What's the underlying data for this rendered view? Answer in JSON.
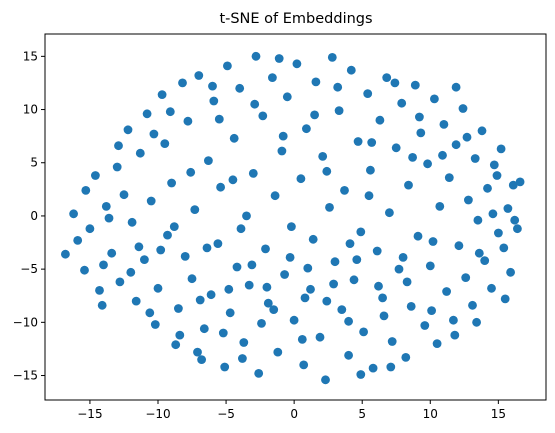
{
  "chart_data": {
    "type": "scatter",
    "title": "t-SNE of Embeddings",
    "xlabel": "",
    "ylabel": "",
    "xlim": [
      -18.3,
      18.5
    ],
    "ylim": [
      -17.3,
      17.1
    ],
    "xticks": [
      -15,
      -10,
      -5,
      0,
      5,
      10,
      15
    ],
    "yticks": [
      -15,
      -10,
      -5,
      0,
      5,
      10,
      15
    ],
    "grid": false,
    "color": "#1f77b4",
    "series": [
      {
        "points": [
          [
            -16.8,
            -3.6
          ],
          [
            -16.2,
            0.2
          ],
          [
            -15.9,
            -2.3
          ],
          [
            -15.4,
            -5.1
          ],
          [
            -15.0,
            -1.2
          ],
          [
            -14.6,
            3.8
          ],
          [
            -14.3,
            -7.0
          ],
          [
            -14.1,
            -8.4
          ],
          [
            -13.8,
            0.9
          ],
          [
            -13.4,
            -3.5
          ],
          [
            -13.0,
            4.6
          ],
          [
            -12.8,
            -6.2
          ],
          [
            -12.5,
            2.0
          ],
          [
            -12.2,
            8.1
          ],
          [
            -11.9,
            -0.6
          ],
          [
            -11.6,
            -8.0
          ],
          [
            -11.3,
            5.9
          ],
          [
            -11.0,
            -4.1
          ],
          [
            -10.8,
            9.6
          ],
          [
            -10.5,
            1.4
          ],
          [
            -10.2,
            -10.2
          ],
          [
            -10.0,
            -6.8
          ],
          [
            -9.7,
            11.4
          ],
          [
            -9.5,
            6.8
          ],
          [
            -9.3,
            -1.8
          ],
          [
            -9.0,
            3.1
          ],
          [
            -8.7,
            -12.1
          ],
          [
            -8.5,
            -8.7
          ],
          [
            -8.2,
            12.5
          ],
          [
            -8.0,
            -3.8
          ],
          [
            -7.8,
            8.9
          ],
          [
            -7.5,
            -5.9
          ],
          [
            -7.3,
            0.6
          ],
          [
            -7.0,
            13.2
          ],
          [
            -6.8,
            -13.5
          ],
          [
            -6.6,
            -10.6
          ],
          [
            -6.3,
            5.2
          ],
          [
            -6.1,
            -7.4
          ],
          [
            -5.9,
            10.8
          ],
          [
            -5.6,
            -2.6
          ],
          [
            -5.4,
            2.7
          ],
          [
            -5.1,
            -14.2
          ],
          [
            -4.9,
            14.1
          ],
          [
            -4.7,
            -9.1
          ],
          [
            -4.4,
            7.3
          ],
          [
            -4.2,
            -4.8
          ],
          [
            -4.0,
            12.0
          ],
          [
            -3.7,
            -11.9
          ],
          [
            -3.5,
            0.0
          ],
          [
            -3.3,
            -6.5
          ],
          [
            -3.0,
            4.0
          ],
          [
            -2.8,
            15.0
          ],
          [
            -2.6,
            -14.8
          ],
          [
            -2.3,
            9.4
          ],
          [
            -2.1,
            -3.1
          ],
          [
            -1.9,
            -8.2
          ],
          [
            -1.6,
            13.0
          ],
          [
            -1.4,
            1.9
          ],
          [
            -1.2,
            -12.8
          ],
          [
            -0.9,
            6.1
          ],
          [
            -0.7,
            -5.5
          ],
          [
            -0.5,
            11.2
          ],
          [
            -0.2,
            -1.0
          ],
          [
            0.0,
            -9.8
          ],
          [
            0.2,
            14.3
          ],
          [
            0.5,
            3.5
          ],
          [
            0.7,
            -14.0
          ],
          [
            0.9,
            8.2
          ],
          [
            1.2,
            -6.9
          ],
          [
            1.4,
            -2.2
          ],
          [
            1.6,
            12.6
          ],
          [
            1.9,
            -11.4
          ],
          [
            2.1,
            5.6
          ],
          [
            2.3,
            -15.4
          ],
          [
            2.6,
            0.8
          ],
          [
            2.8,
            14.9
          ],
          [
            3.0,
            -4.3
          ],
          [
            3.3,
            9.9
          ],
          [
            3.5,
            -8.8
          ],
          [
            3.7,
            2.4
          ],
          [
            4.0,
            -13.1
          ],
          [
            4.2,
            13.7
          ],
          [
            4.4,
            -6.0
          ],
          [
            4.7,
            7.0
          ],
          [
            4.9,
            -1.5
          ],
          [
            5.1,
            -10.9
          ],
          [
            5.4,
            11.5
          ],
          [
            5.6,
            4.3
          ],
          [
            5.8,
            -14.3
          ],
          [
            6.1,
            -3.3
          ],
          [
            6.3,
            9.0
          ],
          [
            6.5,
            -7.7
          ],
          [
            6.8,
            13.0
          ],
          [
            7.0,
            0.3
          ],
          [
            7.2,
            -11.8
          ],
          [
            7.5,
            6.4
          ],
          [
            7.7,
            -5.0
          ],
          [
            7.9,
            10.6
          ],
          [
            8.2,
            -13.3
          ],
          [
            8.4,
            2.9
          ],
          [
            8.6,
            -8.5
          ],
          [
            8.9,
            12.3
          ],
          [
            9.1,
            -1.9
          ],
          [
            9.3,
            7.8
          ],
          [
            9.6,
            -10.3
          ],
          [
            9.8,
            4.9
          ],
          [
            10.0,
            -4.7
          ],
          [
            10.3,
            11.0
          ],
          [
            10.5,
            -12.0
          ],
          [
            10.7,
            0.9
          ],
          [
            11.0,
            8.6
          ],
          [
            11.2,
            -7.1
          ],
          [
            11.4,
            3.6
          ],
          [
            11.7,
            -9.8
          ],
          [
            11.9,
            6.7
          ],
          [
            12.1,
            -2.8
          ],
          [
            12.4,
            10.1
          ],
          [
            12.6,
            -5.8
          ],
          [
            12.8,
            1.5
          ],
          [
            13.1,
            -8.4
          ],
          [
            13.3,
            5.4
          ],
          [
            13.5,
            -0.4
          ],
          [
            13.8,
            8.0
          ],
          [
            14.0,
            -4.2
          ],
          [
            14.2,
            2.6
          ],
          [
            14.5,
            -6.8
          ],
          [
            14.7,
            4.8
          ],
          [
            15.0,
            -1.6
          ],
          [
            15.2,
            6.3
          ],
          [
            15.4,
            -3.0
          ],
          [
            15.7,
            0.7
          ],
          [
            15.9,
            -5.3
          ],
          [
            16.1,
            2.9
          ],
          [
            16.4,
            -1.2
          ],
          [
            16.6,
            3.2
          ],
          [
            -15.3,
            2.4
          ],
          [
            -14.0,
            -4.6
          ],
          [
            -12.9,
            6.6
          ],
          [
            -11.4,
            -2.9
          ],
          [
            -10.6,
            -9.1
          ],
          [
            -9.1,
            9.8
          ],
          [
            -8.4,
            -11.2
          ],
          [
            -7.6,
            4.1
          ],
          [
            -6.9,
            -7.9
          ],
          [
            -6.0,
            12.2
          ],
          [
            -5.2,
            -11.0
          ],
          [
            -4.5,
            3.4
          ],
          [
            -3.8,
            -13.4
          ],
          [
            -2.9,
            10.5
          ],
          [
            -2.0,
            -6.7
          ],
          [
            -1.1,
            14.8
          ],
          [
            -0.3,
            -3.9
          ],
          [
            0.6,
            -11.6
          ],
          [
            1.5,
            9.5
          ],
          [
            2.4,
            -8.0
          ],
          [
            3.2,
            12.1
          ],
          [
            4.1,
            -2.6
          ],
          [
            4.9,
            -14.9
          ],
          [
            5.7,
            6.9
          ],
          [
            6.6,
            -9.4
          ],
          [
            7.4,
            12.5
          ],
          [
            8.3,
            -6.2
          ],
          [
            9.2,
            9.3
          ],
          [
            10.1,
            -8.9
          ],
          [
            10.9,
            5.7
          ],
          [
            11.8,
            -11.2
          ],
          [
            12.7,
            7.4
          ],
          [
            13.6,
            -3.5
          ],
          [
            14.6,
            0.2
          ],
          [
            15.5,
            -7.8
          ],
          [
            -13.6,
            -0.2
          ],
          [
            -12.0,
            -5.3
          ],
          [
            -10.3,
            7.7
          ],
          [
            -8.8,
            -1.0
          ],
          [
            -7.1,
            -12.8
          ],
          [
            -5.5,
            9.1
          ],
          [
            -3.9,
            -1.2
          ],
          [
            -2.4,
            -10.1
          ],
          [
            -0.8,
            7.5
          ],
          [
            0.8,
            -7.7
          ],
          [
            2.4,
            4.2
          ],
          [
            4.0,
            -9.9
          ],
          [
            5.5,
            1.9
          ],
          [
            7.1,
            -14.2
          ],
          [
            8.7,
            5.5
          ],
          [
            10.2,
            -2.4
          ],
          [
            11.9,
            12.1
          ],
          [
            13.4,
            -10.0
          ],
          [
            14.9,
            3.8
          ],
          [
            16.2,
            -0.4
          ],
          [
            -9.8,
            -3.2
          ],
          [
            -6.4,
            -3.0
          ],
          [
            -4.8,
            -6.9
          ],
          [
            -3.1,
            -4.6
          ],
          [
            -1.5,
            -8.8
          ],
          [
            1.0,
            -4.9
          ],
          [
            2.9,
            -6.4
          ],
          [
            4.6,
            -4.1
          ],
          [
            6.2,
            -6.6
          ],
          [
            8.0,
            -3.9
          ]
        ]
      }
    ]
  }
}
